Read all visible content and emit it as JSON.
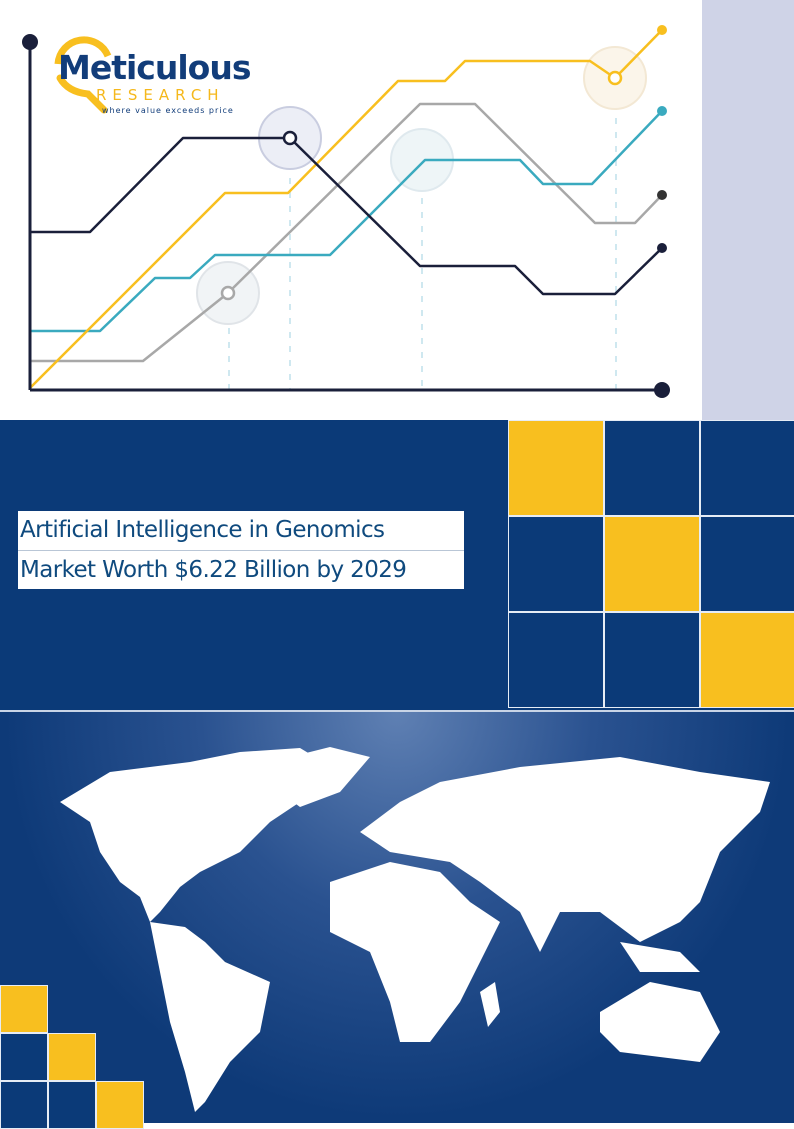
{
  "logo": {
    "name": "Meticulous",
    "sub": "RESEARCH",
    "tagline": "where value exceeds price"
  },
  "title": {
    "line1": "Artificial Intelligence in Genomics",
    "line2": "Market Worth $6.22 Billion by 2029"
  },
  "colors": {
    "navy": "#0b3a78",
    "yellow": "#f8bf1f",
    "teal": "#3aaabf",
    "gray": "#a8a8a8",
    "dark": "#1a1f3a",
    "lavender": "#cfd3e7"
  },
  "icons": [
    "line-chart-illustration",
    "world-map-illustration",
    "magnifier-logo-icon"
  ]
}
